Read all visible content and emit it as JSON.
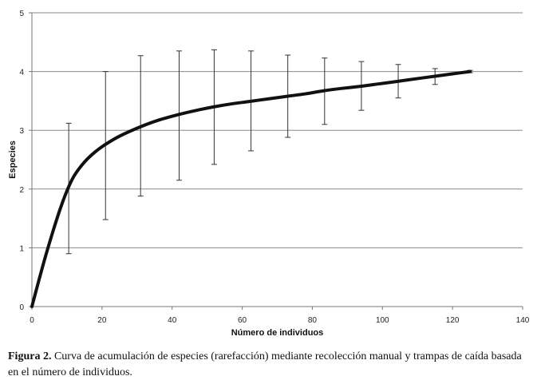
{
  "caption": {
    "label": "Figura 2.",
    "text": " Curva de acumulación de especies (rarefacción) mediante recolección manual y trampas de caída basada en el número de individuos."
  },
  "chart_data": {
    "type": "line",
    "title": "",
    "xlabel": "Número de individuos",
    "ylabel": "Especies",
    "xlim": [
      0,
      140
    ],
    "ylim": [
      0,
      5
    ],
    "xticks": [
      0,
      20,
      40,
      60,
      80,
      100,
      120,
      140
    ],
    "yticks": [
      0,
      1,
      2,
      3,
      4,
      5
    ],
    "grid": "horizontal",
    "legend": "none",
    "line_color": "#111111",
    "series": [
      {
        "x": [
          0,
          2,
          4,
          6,
          8,
          10,
          12,
          15,
          18,
          21,
          25,
          31,
          36,
          42,
          47,
          52,
          57,
          62,
          68,
          73,
          78,
          83,
          88,
          94,
          99,
          104,
          110,
          115,
          120,
          125
        ],
        "y": [
          0,
          0.45,
          0.88,
          1.28,
          1.65,
          1.97,
          2.22,
          2.46,
          2.63,
          2.76,
          2.9,
          3.06,
          3.17,
          3.27,
          3.34,
          3.4,
          3.45,
          3.49,
          3.54,
          3.58,
          3.62,
          3.67,
          3.71,
          3.75,
          3.79,
          3.83,
          3.88,
          3.92,
          3.96,
          4.0
        ]
      }
    ],
    "error_bars": [
      {
        "x": 10.5,
        "y": 2.0,
        "low": 0.9,
        "high": 3.12
      },
      {
        "x": 21,
        "y": 2.75,
        "low": 1.48,
        "high": 4.0
      },
      {
        "x": 31,
        "y": 3.07,
        "low": 1.88,
        "high": 4.27
      },
      {
        "x": 42,
        "y": 3.27,
        "low": 2.15,
        "high": 4.35
      },
      {
        "x": 52,
        "y": 3.4,
        "low": 2.42,
        "high": 4.37
      },
      {
        "x": 62.5,
        "y": 3.5,
        "low": 2.65,
        "high": 4.35
      },
      {
        "x": 73,
        "y": 3.58,
        "low": 2.88,
        "high": 4.28
      },
      {
        "x": 83.5,
        "y": 3.67,
        "low": 3.1,
        "high": 4.23
      },
      {
        "x": 94,
        "y": 3.75,
        "low": 3.34,
        "high": 4.17
      },
      {
        "x": 104.5,
        "y": 3.83,
        "low": 3.55,
        "high": 4.12
      },
      {
        "x": 115,
        "y": 3.92,
        "low": 3.78,
        "high": 4.05
      },
      {
        "x": 125,
        "y": 4.0,
        "low": 3.98,
        "high": 4.02
      }
    ]
  }
}
